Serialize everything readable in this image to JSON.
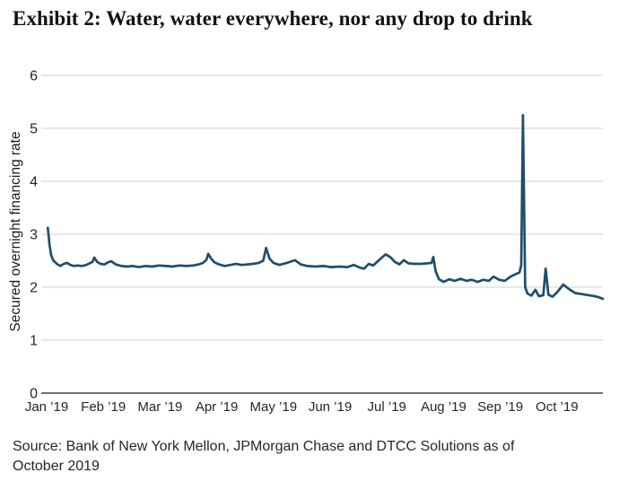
{
  "title": "Exhibit 2: Water, water everywhere, nor any drop to drink",
  "source": "Source: Bank of New York Mellon, JPMorgan Chase and DTCC Solutions as of\nOctober 2019",
  "colors": {
    "line": "#1f4e6d",
    "grid": "#d2d2d2",
    "axis": "#404040",
    "tick_text": "#262626"
  },
  "chart_data": {
    "type": "line",
    "title": "Exhibit 2: Water, water everywhere, nor any drop to drink",
    "ylabel": "Secured overnight financing rate",
    "xlabel": "",
    "ylim": [
      0,
      6
    ],
    "y_ticks": [
      0,
      1,
      2,
      3,
      4,
      5,
      6
    ],
    "x_tick_labels": [
      "Jan ’19",
      "Feb ’19",
      "Mar ’19",
      "Apr ’19",
      "May ’19",
      "Jun ’19",
      "Jul ’19",
      "Aug ’19",
      "Sep ’19",
      "Oct ’19"
    ],
    "x_unit": "months since Jan 1, 2019",
    "xlim_months": [
      0,
      9.9
    ],
    "grid": "horizontal",
    "legend": "none",
    "annotations": {
      "peak_value": 5.25,
      "peak_when_months": 8.4,
      "start_value": 3.12,
      "end_value": 1.78
    },
    "series": [
      {
        "name": "Secured overnight financing rate",
        "points": [
          [
            0.02,
            3.12
          ],
          [
            0.05,
            2.8
          ],
          [
            0.08,
            2.6
          ],
          [
            0.12,
            2.5
          ],
          [
            0.18,
            2.44
          ],
          [
            0.24,
            2.4
          ],
          [
            0.3,
            2.44
          ],
          [
            0.36,
            2.46
          ],
          [
            0.42,
            2.42
          ],
          [
            0.48,
            2.4
          ],
          [
            0.55,
            2.41
          ],
          [
            0.62,
            2.4
          ],
          [
            0.7,
            2.42
          ],
          [
            0.76,
            2.45
          ],
          [
            0.81,
            2.48
          ],
          [
            0.84,
            2.56
          ],
          [
            0.89,
            2.48
          ],
          [
            0.95,
            2.44
          ],
          [
            1.02,
            2.43
          ],
          [
            1.08,
            2.47
          ],
          [
            1.14,
            2.49
          ],
          [
            1.22,
            2.43
          ],
          [
            1.32,
            2.4
          ],
          [
            1.42,
            2.39
          ],
          [
            1.52,
            2.4
          ],
          [
            1.62,
            2.38
          ],
          [
            1.74,
            2.4
          ],
          [
            1.86,
            2.39
          ],
          [
            1.98,
            2.41
          ],
          [
            2.1,
            2.4
          ],
          [
            2.22,
            2.39
          ],
          [
            2.34,
            2.41
          ],
          [
            2.46,
            2.4
          ],
          [
            2.58,
            2.41
          ],
          [
            2.68,
            2.43
          ],
          [
            2.76,
            2.46
          ],
          [
            2.82,
            2.52
          ],
          [
            2.85,
            2.63
          ],
          [
            2.9,
            2.54
          ],
          [
            2.96,
            2.47
          ],
          [
            3.04,
            2.43
          ],
          [
            3.14,
            2.4
          ],
          [
            3.24,
            2.42
          ],
          [
            3.34,
            2.44
          ],
          [
            3.44,
            2.42
          ],
          [
            3.54,
            2.43
          ],
          [
            3.64,
            2.44
          ],
          [
            3.74,
            2.46
          ],
          [
            3.82,
            2.5
          ],
          [
            3.87,
            2.74
          ],
          [
            3.93,
            2.54
          ],
          [
            4.0,
            2.46
          ],
          [
            4.1,
            2.42
          ],
          [
            4.24,
            2.46
          ],
          [
            4.38,
            2.51
          ],
          [
            4.48,
            2.43
          ],
          [
            4.6,
            2.4
          ],
          [
            4.74,
            2.39
          ],
          [
            4.88,
            2.4
          ],
          [
            5.02,
            2.38
          ],
          [
            5.16,
            2.39
          ],
          [
            5.3,
            2.38
          ],
          [
            5.42,
            2.42
          ],
          [
            5.52,
            2.37
          ],
          [
            5.6,
            2.35
          ],
          [
            5.68,
            2.44
          ],
          [
            5.76,
            2.41
          ],
          [
            5.84,
            2.49
          ],
          [
            5.9,
            2.55
          ],
          [
            5.98,
            2.62
          ],
          [
            6.06,
            2.57
          ],
          [
            6.14,
            2.48
          ],
          [
            6.22,
            2.43
          ],
          [
            6.3,
            2.51
          ],
          [
            6.38,
            2.45
          ],
          [
            6.48,
            2.44
          ],
          [
            6.6,
            2.44
          ],
          [
            6.72,
            2.45
          ],
          [
            6.79,
            2.46
          ],
          [
            6.82,
            2.57
          ],
          [
            6.86,
            2.3
          ],
          [
            6.92,
            2.15
          ],
          [
            7.0,
            2.1
          ],
          [
            7.1,
            2.15
          ],
          [
            7.2,
            2.12
          ],
          [
            7.3,
            2.16
          ],
          [
            7.4,
            2.12
          ],
          [
            7.5,
            2.14
          ],
          [
            7.6,
            2.1
          ],
          [
            7.7,
            2.14
          ],
          [
            7.8,
            2.12
          ],
          [
            7.88,
            2.2
          ],
          [
            7.98,
            2.14
          ],
          [
            8.08,
            2.12
          ],
          [
            8.18,
            2.2
          ],
          [
            8.26,
            2.24
          ],
          [
            8.34,
            2.28
          ],
          [
            8.37,
            2.42
          ],
          [
            8.4,
            5.25
          ],
          [
            8.44,
            2.0
          ],
          [
            8.48,
            1.88
          ],
          [
            8.55,
            1.84
          ],
          [
            8.62,
            1.95
          ],
          [
            8.68,
            1.83
          ],
          [
            8.76,
            1.85
          ],
          [
            8.8,
            2.35
          ],
          [
            8.85,
            1.86
          ],
          [
            8.92,
            1.82
          ],
          [
            9.0,
            1.9
          ],
          [
            9.11,
            2.05
          ],
          [
            9.22,
            1.96
          ],
          [
            9.32,
            1.89
          ],
          [
            9.44,
            1.87
          ],
          [
            9.56,
            1.85
          ],
          [
            9.66,
            1.83
          ],
          [
            9.74,
            1.81
          ],
          [
            9.81,
            1.78
          ]
        ]
      }
    ]
  }
}
